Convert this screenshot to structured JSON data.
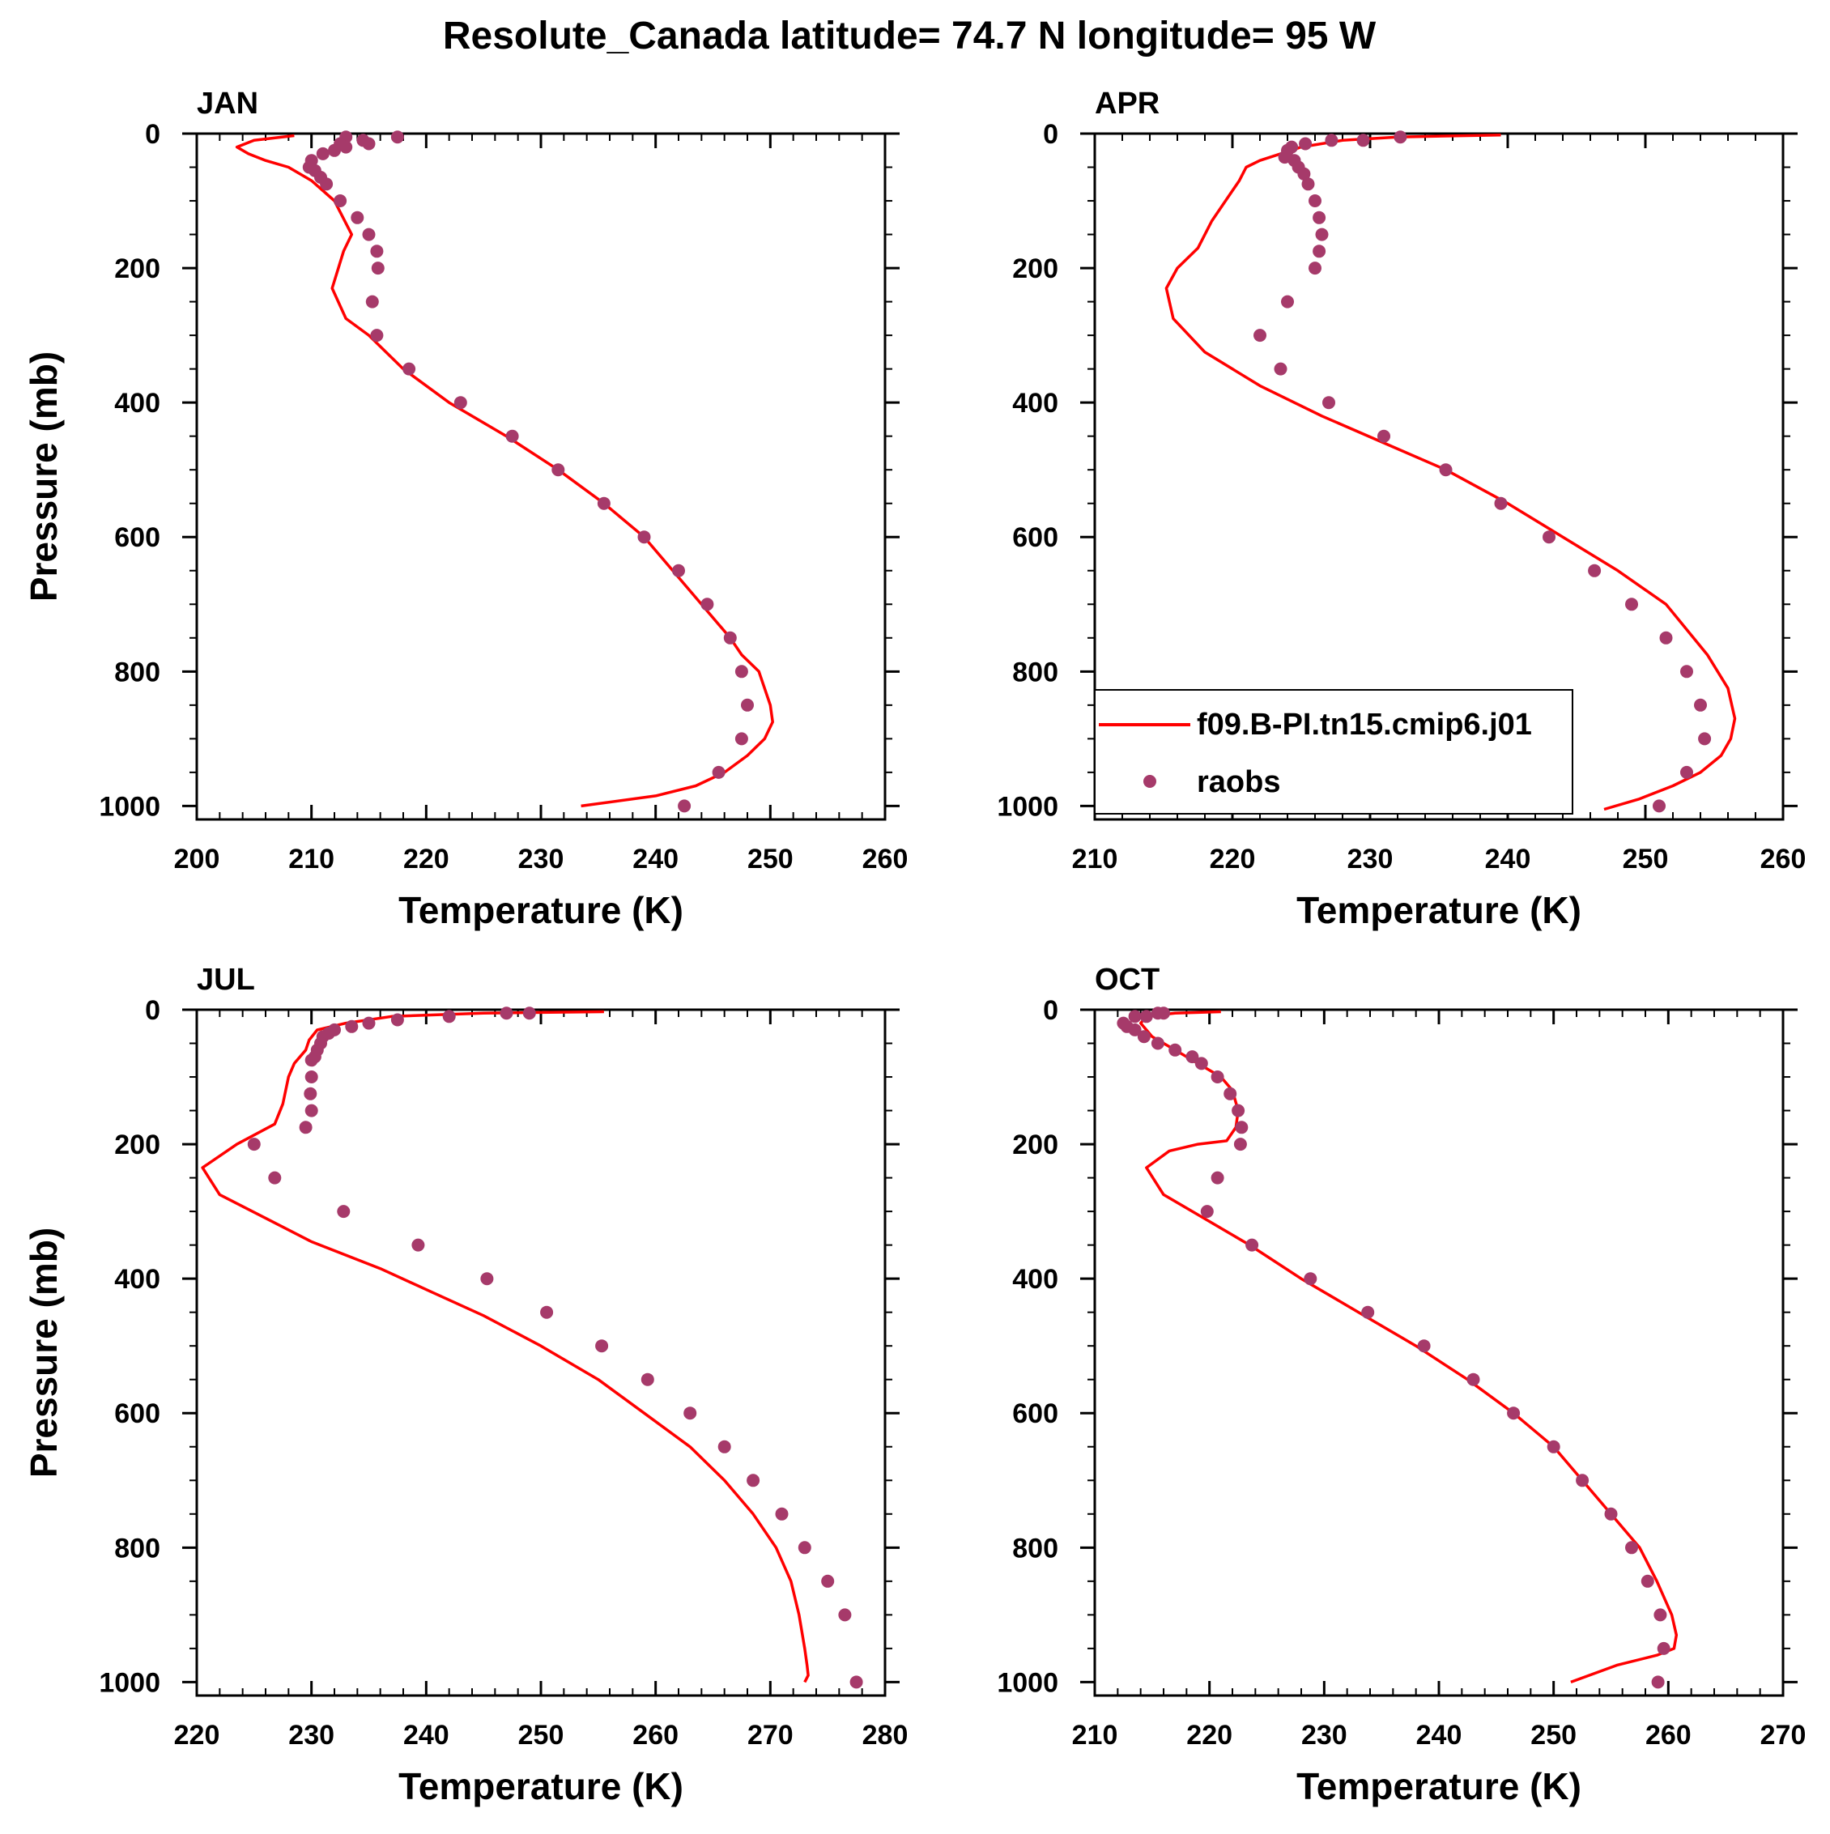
{
  "figure": {
    "title": "Resolute_Canada  latitude= 74.7 N longitude= 95 W",
    "legend": {
      "model_label": "f09.B-PI.tn15.cmip6.j01",
      "obs_label": "raobs",
      "model_color": "#ff0000",
      "obs_color": "#a63a6a"
    }
  },
  "chart_data": [
    {
      "type": "line",
      "title": "JAN",
      "xlabel": "Temperature (K)",
      "ylabel": "Pressure (mb)",
      "xlim": [
        200,
        260
      ],
      "ylim": [
        1020,
        0
      ],
      "xticks": [
        "200",
        "210",
        "220",
        "230",
        "240",
        "250",
        "260"
      ],
      "yticks": [
        "0",
        "200",
        "400",
        "600",
        "800",
        "1000"
      ],
      "series": [
        {
          "name": "f09.B-PI.tn15.cmip6.j01",
          "x": [
            208.5,
            205,
            203.5,
            204.5,
            206,
            208,
            210,
            212,
            213.5,
            212.8,
            211.8,
            213,
            215,
            218,
            222,
            227,
            231.5,
            235.5,
            239,
            241.5,
            244,
            246.5,
            247.5,
            249,
            250,
            250.2,
            249.5,
            248,
            246,
            243.5,
            240,
            233.5
          ],
          "y": [
            3,
            10,
            20,
            30,
            40,
            50,
            70,
            100,
            150,
            175,
            230,
            275,
            300,
            350,
            400,
            450,
            500,
            550,
            600,
            650,
            700,
            750,
            775,
            800,
            850,
            875,
            900,
            925,
            950,
            970,
            985,
            1000
          ]
        },
        {
          "name": "raobs",
          "x": [
            217.5,
            213,
            212.5,
            215,
            214.5,
            213,
            212,
            211,
            210,
            209.8,
            210.3,
            210.8,
            211.3,
            212.5,
            214,
            215,
            215.7,
            215.8,
            215.3,
            215.7,
            218.5,
            223,
            227.5,
            231.5,
            235.5,
            239,
            242,
            244.5,
            246.5,
            247.5,
            248,
            247.5,
            245.5,
            242.5
          ],
          "y": [
            5,
            5,
            15,
            15,
            10,
            20,
            25,
            30,
            40,
            50,
            55,
            65,
            75,
            100,
            125,
            150,
            175,
            200,
            250,
            300,
            350,
            400,
            450,
            500,
            550,
            600,
            650,
            700,
            750,
            800,
            850,
            900,
            950,
            1000
          ]
        }
      ]
    },
    {
      "type": "line",
      "title": "APR",
      "xlabel": "Temperature (K)",
      "ylabel": "",
      "xlim": [
        210,
        260
      ],
      "ylim": [
        1020,
        0
      ],
      "xticks": [
        "210",
        "220",
        "230",
        "240",
        "250",
        "260"
      ],
      "yticks": [
        "0",
        "200",
        "400",
        "600",
        "800",
        "1000"
      ],
      "series": [
        {
          "name": "f09.B-PI.tn15.cmip6.j01",
          "x": [
            239.5,
            232,
            228,
            225,
            223.5,
            222,
            221,
            220.5,
            219.5,
            218.5,
            217.5,
            216,
            215.2,
            215.7,
            218,
            222,
            226.5,
            231,
            235.5,
            240,
            244,
            248,
            251.5,
            254.5,
            256,
            256.5,
            256.2,
            255.5,
            254,
            252,
            249.5,
            247
          ],
          "y": [
            2,
            5,
            10,
            20,
            30,
            40,
            50,
            70,
            100,
            130,
            170,
            200,
            230,
            275,
            325,
            375,
            420,
            460,
            500,
            550,
            600,
            650,
            700,
            775,
            825,
            870,
            900,
            925,
            950,
            970,
            990,
            1005
          ]
        },
        {
          "name": "raobs",
          "x": [
            232.2,
            229.5,
            227.2,
            225.3,
            224.3,
            224,
            223.8,
            224.5,
            224.8,
            225.2,
            225.5,
            226,
            226.3,
            226.5,
            226.3,
            226,
            224,
            222,
            223.5,
            227,
            231,
            235.5,
            239.5,
            243,
            246.3,
            249,
            251.5,
            253,
            254,
            254.3,
            253,
            251
          ],
          "y": [
            5,
            10,
            10,
            15,
            20,
            25,
            35,
            40,
            50,
            60,
            75,
            100,
            125,
            150,
            175,
            200,
            250,
            300,
            350,
            400,
            450,
            500,
            550,
            600,
            650,
            700,
            750,
            800,
            850,
            900,
            950,
            1000
          ]
        }
      ]
    },
    {
      "type": "line",
      "title": "JUL",
      "xlabel": "Temperature (K)",
      "ylabel": "Pressure (mb)",
      "xlim": [
        220,
        280
      ],
      "ylim": [
        1020,
        0
      ],
      "xticks": [
        "220",
        "230",
        "240",
        "250",
        "260",
        "270",
        "280"
      ],
      "yticks": [
        "0",
        "200",
        "400",
        "600",
        "800",
        "1000"
      ],
      "series": [
        {
          "name": "f09.B-PI.tn15.cmip6.j01",
          "x": [
            255.5,
            245,
            237,
            233,
            230.5,
            229.8,
            229.5,
            228.5,
            228,
            227.5,
            226.8,
            223.5,
            220.5,
            222,
            226,
            230,
            236,
            240.5,
            245,
            250,
            255,
            259,
            263,
            266,
            268.5,
            270.5,
            271.8,
            272.5,
            273,
            273.2,
            273.3,
            273
          ],
          "y": [
            3,
            5,
            10,
            20,
            30,
            45,
            60,
            80,
            100,
            140,
            170,
            200,
            235,
            275,
            310,
            345,
            385,
            420,
            455,
            500,
            550,
            600,
            650,
            700,
            750,
            800,
            850,
            900,
            950,
            975,
            990,
            1000
          ]
        },
        {
          "name": "raobs",
          "x": [
            249,
            247,
            242,
            237.5,
            235,
            233.5,
            232,
            231.5,
            231,
            230.8,
            230.5,
            230.3,
            230,
            230,
            229.9,
            230,
            229.5,
            225,
            226.8,
            232.8,
            239.3,
            245.3,
            250.5,
            255.3,
            259.3,
            263,
            266,
            268.5,
            271,
            273,
            275,
            276.5,
            277.5
          ],
          "y": [
            5,
            5,
            10,
            15,
            20,
            25,
            30,
            35,
            40,
            50,
            60,
            70,
            75,
            100,
            125,
            150,
            175,
            200,
            250,
            300,
            350,
            400,
            450,
            500,
            550,
            600,
            650,
            700,
            750,
            800,
            850,
            900,
            1000
          ]
        }
      ]
    },
    {
      "type": "line",
      "title": "OCT",
      "xlabel": "Temperature (K)",
      "ylabel": "",
      "xlim": [
        210,
        270
      ],
      "ylim": [
        1020,
        0
      ],
      "xticks": [
        "210",
        "220",
        "230",
        "240",
        "250",
        "260",
        "270"
      ],
      "yticks": [
        "0",
        "200",
        "400",
        "600",
        "800",
        "1000"
      ],
      "series": [
        {
          "name": "f09.B-PI.tn15.cmip6.j01",
          "x": [
            221,
            217,
            214.5,
            214,
            215,
            217,
            219,
            221,
            222,
            222.5,
            222.3,
            221.5,
            219,
            216.5,
            214.5,
            216,
            219.5,
            223.5,
            228,
            233,
            238,
            242.5,
            246.5,
            250,
            252.5,
            255,
            257.5,
            259,
            260.3,
            260.7,
            260.5,
            259,
            255.5,
            251.5
          ],
          "y": [
            3,
            5,
            10,
            20,
            40,
            60,
            80,
            100,
            120,
            150,
            175,
            195,
            200,
            210,
            235,
            275,
            310,
            350,
            400,
            450,
            500,
            550,
            600,
            650,
            700,
            750,
            800,
            850,
            900,
            930,
            950,
            960,
            975,
            1000
          ]
        },
        {
          "name": "raobs",
          "x": [
            216,
            215.5,
            214.5,
            213.5,
            212.5,
            212.8,
            213.5,
            214.3,
            215.5,
            217,
            218.5,
            219.3,
            220.7,
            221.8,
            222.5,
            222.8,
            222.7,
            220.7,
            219.8,
            223.7,
            228.8,
            233.8,
            238.7,
            243,
            246.5,
            250,
            252.5,
            255,
            256.8,
            258.2,
            259.3,
            259.6,
            259.1
          ],
          "y": [
            5,
            5,
            10,
            10,
            20,
            25,
            30,
            40,
            50,
            60,
            70,
            80,
            100,
            125,
            150,
            175,
            200,
            250,
            300,
            350,
            400,
            450,
            500,
            550,
            600,
            650,
            700,
            750,
            800,
            850,
            900,
            950,
            1000
          ]
        }
      ]
    }
  ]
}
